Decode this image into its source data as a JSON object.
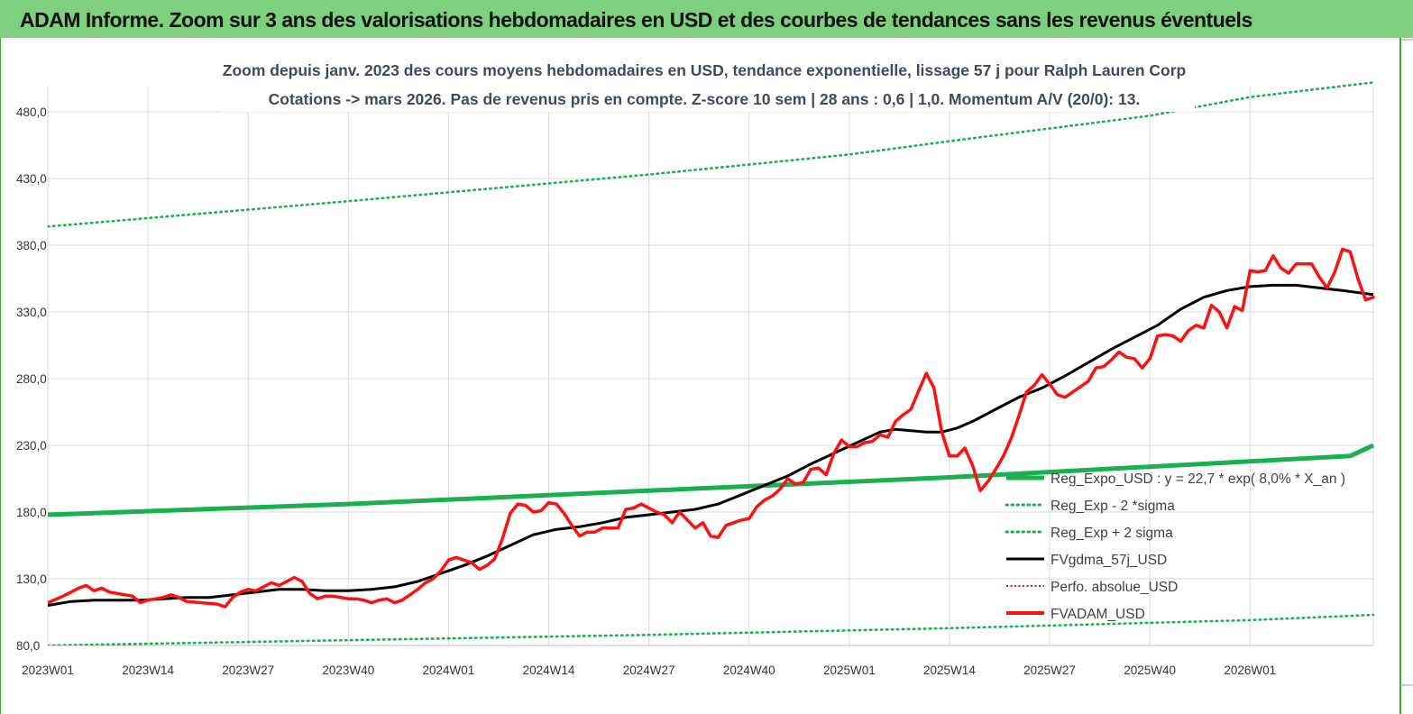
{
  "banner": {
    "text": "ADAM Informe. Zoom sur 3 ans des valorisations hebdomadaires en USD et des courbes de tendances sans les revenus éventuels"
  },
  "colors": {
    "banner_bg": "#7ecf7e",
    "reg_expo": "#1aaf4f",
    "reg_bands": "#1aaf4f",
    "fvgdma": "#000000",
    "perfo": "#e02020",
    "fvadam": "#ff1010",
    "grid": "#d9d9d9"
  },
  "chart_data": {
    "type": "line",
    "title_line1": "Zoom depuis janv. 2023 des cours moyens hebdomadaires en USD, tendance exponentielle, lissage 57 j pour Ralph Lauren Corp",
    "title_line2": "Cotations -> mars 2026. Pas de revenus pris en compte. Z-score 10 sem  | 28 ans : 0,6 | 1,0. Momentum A/V (20/0): 13.",
    "x_tick_labels": [
      "2023W01",
      "2023W14",
      "2023W27",
      "2023W40",
      "2024W01",
      "2024W14",
      "2024W27",
      "2024W40",
      "2025W01",
      "2025W14",
      "2025W27",
      "2025W40",
      "2026W01"
    ],
    "ylim": [
      80,
      480
    ],
    "y_tick_labels": [
      "80,0",
      "130,0",
      "180,0",
      "230,0",
      "280,0",
      "330,0",
      "380,0",
      "430,0",
      "480,0"
    ],
    "y_ticks": [
      80,
      130,
      180,
      230,
      280,
      330,
      380,
      430,
      480
    ],
    "grid_vertical": true,
    "grid_horizontal": true,
    "legend_position": "bottom-right",
    "series": [
      {
        "name": "Reg_Expo_USD : y = 22,7 * exp( 8,0% *  X_an )",
        "style": "solid-thick",
        "points": [
          [
            0,
            178
          ],
          [
            39,
            186
          ],
          [
            78,
            196
          ],
          [
            117,
            206
          ],
          [
            156,
            218
          ],
          [
            169,
            222
          ],
          [
            172,
            230
          ]
        ]
      },
      {
        "name": "Reg_Exp - 2 *sigma",
        "style": "dotted",
        "points": [
          [
            0,
            80
          ],
          [
            39,
            84
          ],
          [
            78,
            88
          ],
          [
            117,
            93
          ],
          [
            156,
            99
          ],
          [
            172,
            103
          ]
        ]
      },
      {
        "name": "Reg_Exp + 2 sigma",
        "style": "dotted",
        "points": [
          [
            0,
            394
          ],
          [
            39,
            413
          ],
          [
            78,
            433
          ],
          [
            104,
            448
          ],
          [
            117,
            458
          ],
          [
            143,
            477
          ],
          [
            156,
            491
          ],
          [
            172,
            502
          ]
        ]
      },
      {
        "name": "FVgdma_57j_USD",
        "style": "solid",
        "points": [
          [
            0,
            110
          ],
          [
            3,
            113
          ],
          [
            6,
            114
          ],
          [
            9,
            114
          ],
          [
            12,
            114
          ],
          [
            15,
            115
          ],
          [
            18,
            116
          ],
          [
            21,
            116
          ],
          [
            24,
            118
          ],
          [
            27,
            120
          ],
          [
            30,
            122
          ],
          [
            33,
            122
          ],
          [
            36,
            121
          ],
          [
            39,
            121
          ],
          [
            42,
            122
          ],
          [
            45,
            124
          ],
          [
            48,
            128
          ],
          [
            51,
            134
          ],
          [
            54,
            140
          ],
          [
            57,
            147
          ],
          [
            60,
            155
          ],
          [
            63,
            163
          ],
          [
            66,
            167
          ],
          [
            69,
            169
          ],
          [
            72,
            172
          ],
          [
            75,
            176
          ],
          [
            78,
            178
          ],
          [
            81,
            180
          ],
          [
            84,
            182
          ],
          [
            87,
            186
          ],
          [
            90,
            193
          ],
          [
            93,
            200
          ],
          [
            96,
            207
          ],
          [
            99,
            216
          ],
          [
            102,
            224
          ],
          [
            105,
            232
          ],
          [
            108,
            240
          ],
          [
            110,
            242
          ],
          [
            112,
            241
          ],
          [
            114,
            240
          ],
          [
            116,
            240
          ],
          [
            118,
            243
          ],
          [
            120,
            248
          ],
          [
            123,
            257
          ],
          [
            126,
            266
          ],
          [
            129,
            273
          ],
          [
            132,
            282
          ],
          [
            135,
            292
          ],
          [
            138,
            302
          ],
          [
            141,
            311
          ],
          [
            144,
            320
          ],
          [
            147,
            332
          ],
          [
            150,
            341
          ],
          [
            153,
            346
          ],
          [
            156,
            349
          ],
          [
            159,
            350
          ],
          [
            162,
            350
          ],
          [
            165,
            348
          ],
          [
            168,
            346
          ],
          [
            172,
            343
          ]
        ]
      },
      {
        "name": "Perfo. absolue_USD",
        "style": "dotted",
        "points": []
      },
      {
        "name": "FVADAM_USD",
        "style": "solid-thick",
        "points": [
          [
            0,
            112
          ],
          [
            2,
            117
          ],
          [
            4,
            123
          ],
          [
            5,
            125
          ],
          [
            6,
            121
          ],
          [
            7,
            123
          ],
          [
            8,
            120
          ],
          [
            10,
            118
          ],
          [
            11,
            117
          ],
          [
            12,
            112
          ],
          [
            13,
            114
          ],
          [
            14,
            115
          ],
          [
            15,
            116
          ],
          [
            16,
            118
          ],
          [
            17,
            116
          ],
          [
            18,
            113
          ],
          [
            20,
            112
          ],
          [
            22,
            111
          ],
          [
            23,
            109
          ],
          [
            24,
            116
          ],
          [
            25,
            120
          ],
          [
            26,
            122
          ],
          [
            27,
            121
          ],
          [
            28,
            124
          ],
          [
            29,
            127
          ],
          [
            30,
            125
          ],
          [
            31,
            128
          ],
          [
            32,
            131
          ],
          [
            33,
            128
          ],
          [
            34,
            119
          ],
          [
            35,
            115
          ],
          [
            36,
            117
          ],
          [
            37,
            117
          ],
          [
            38,
            116
          ],
          [
            39,
            115
          ],
          [
            40,
            115
          ],
          [
            41,
            114
          ],
          [
            42,
            112
          ],
          [
            43,
            114
          ],
          [
            44,
            115
          ],
          [
            45,
            112
          ],
          [
            46,
            114
          ],
          [
            47,
            118
          ],
          [
            48,
            122
          ],
          [
            49,
            127
          ],
          [
            50,
            130
          ],
          [
            51,
            136
          ],
          [
            52,
            144
          ],
          [
            53,
            146
          ],
          [
            54,
            144
          ],
          [
            55,
            142
          ],
          [
            56,
            137
          ],
          [
            57,
            140
          ],
          [
            58,
            145
          ],
          [
            59,
            160
          ],
          [
            60,
            179
          ],
          [
            61,
            186
          ],
          [
            62,
            185
          ],
          [
            63,
            180
          ],
          [
            64,
            181
          ],
          [
            65,
            187
          ],
          [
            66,
            186
          ],
          [
            67,
            179
          ],
          [
            68,
            170
          ],
          [
            69,
            162
          ],
          [
            70,
            165
          ],
          [
            71,
            165
          ],
          [
            72,
            168
          ],
          [
            73,
            168
          ],
          [
            74,
            168
          ],
          [
            75,
            182
          ],
          [
            76,
            183
          ],
          [
            77,
            186
          ],
          [
            78,
            183
          ],
          [
            79,
            180
          ],
          [
            80,
            178
          ],
          [
            81,
            172
          ],
          [
            82,
            180
          ],
          [
            83,
            174
          ],
          [
            84,
            168
          ],
          [
            85,
            172
          ],
          [
            86,
            162
          ],
          [
            87,
            161
          ],
          [
            88,
            170
          ],
          [
            89,
            172
          ],
          [
            90,
            174
          ],
          [
            91,
            175
          ],
          [
            92,
            184
          ],
          [
            93,
            189
          ],
          [
            94,
            192
          ],
          [
            95,
            197
          ],
          [
            96,
            205
          ],
          [
            97,
            201
          ],
          [
            98,
            202
          ],
          [
            99,
            212
          ],
          [
            100,
            213
          ],
          [
            101,
            208
          ],
          [
            102,
            224
          ],
          [
            103,
            234
          ],
          [
            104,
            229
          ],
          [
            105,
            229
          ],
          [
            106,
            232
          ],
          [
            107,
            233
          ],
          [
            108,
            238
          ],
          [
            109,
            236
          ],
          [
            110,
            248
          ],
          [
            111,
            253
          ],
          [
            112,
            257
          ],
          [
            113,
            271
          ],
          [
            114,
            284
          ],
          [
            115,
            273
          ],
          [
            116,
            240
          ],
          [
            117,
            222
          ],
          [
            118,
            222
          ],
          [
            119,
            228
          ],
          [
            120,
            215
          ],
          [
            121,
            196
          ],
          [
            122,
            203
          ],
          [
            123,
            212
          ],
          [
            124,
            222
          ],
          [
            125,
            235
          ],
          [
            126,
            252
          ],
          [
            127,
            270
          ],
          [
            128,
            275
          ],
          [
            129,
            283
          ],
          [
            130,
            276
          ],
          [
            131,
            268
          ],
          [
            132,
            266
          ],
          [
            133,
            270
          ],
          [
            134,
            274
          ],
          [
            135,
            278
          ],
          [
            136,
            288
          ],
          [
            137,
            289
          ],
          [
            138,
            294
          ],
          [
            139,
            300
          ],
          [
            140,
            296
          ],
          [
            141,
            295
          ],
          [
            142,
            288
          ],
          [
            143,
            295
          ],
          [
            144,
            312
          ],
          [
            145,
            313
          ],
          [
            146,
            312
          ],
          [
            147,
            308
          ],
          [
            148,
            316
          ],
          [
            149,
            320
          ],
          [
            150,
            318
          ],
          [
            151,
            335
          ],
          [
            152,
            330
          ],
          [
            153,
            318
          ],
          [
            154,
            334
          ],
          [
            155,
            331
          ],
          [
            156,
            361
          ],
          [
            157,
            360
          ],
          [
            158,
            361
          ],
          [
            159,
            372
          ],
          [
            160,
            363
          ],
          [
            161,
            359
          ],
          [
            162,
            366
          ],
          [
            163,
            366
          ],
          [
            164,
            366
          ],
          [
            165,
            356
          ],
          [
            166,
            348
          ],
          [
            167,
            360
          ],
          [
            168,
            377
          ],
          [
            169,
            375
          ],
          [
            170,
            355
          ],
          [
            171,
            339
          ],
          [
            172,
            341
          ]
        ]
      }
    ]
  }
}
